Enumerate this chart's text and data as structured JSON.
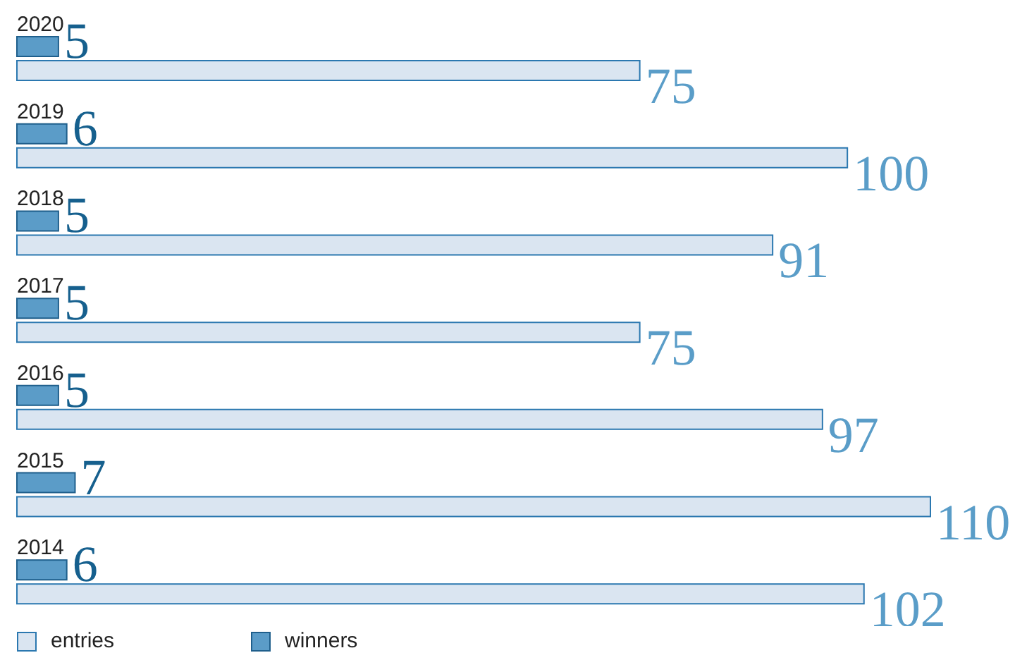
{
  "chart_data": {
    "type": "bar",
    "orientation": "horizontal",
    "categories": [
      "2020",
      "2019",
      "2018",
      "2017",
      "2016",
      "2015",
      "2014"
    ],
    "series": [
      {
        "name": "entries",
        "color": "#dae5f1",
        "values": [
          75,
          100,
          91,
          75,
          97,
          110,
          102
        ]
      },
      {
        "name": "winners",
        "color": "#5b9cc8",
        "values": [
          5,
          6,
          5,
          5,
          5,
          7,
          6
        ]
      }
    ],
    "data_labels": true,
    "legend": "bottom left",
    "grid": false
  }
}
